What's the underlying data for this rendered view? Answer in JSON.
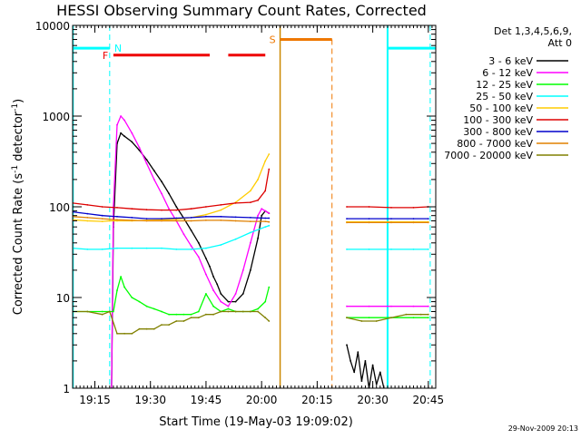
{
  "chart_data": {
    "type": "line",
    "title": "HESSI Observing Summary Count Rates, Corrected",
    "xlabel": "Start Time (19-May-03 19:09:02)",
    "ylabel_main": "Corrected Count Rate (s",
    "ylabel_sup1": "-1",
    "ylabel_mid": " detector",
    "ylabel_sup2": "-1",
    "ylabel_end": ")",
    "footer_date": "29-Nov-2009 20:13",
    "x_unit": "minutes after 19:09:02 UT",
    "xlim": [
      0,
      98
    ],
    "ylim": [
      1,
      10000
    ],
    "yscale": "log",
    "x_ticks": [
      {
        "x": 6,
        "label": "19:15"
      },
      {
        "x": 21,
        "label": "19:30"
      },
      {
        "x": 36,
        "label": "19:45"
      },
      {
        "x": 51,
        "label": "20:00"
      },
      {
        "x": 66,
        "label": "20:15"
      },
      {
        "x": 81,
        "label": "20:30"
      },
      {
        "x": 96,
        "label": "20:45"
      }
    ],
    "x_minor_step": 1,
    "y_ticks": [
      {
        "y": 1,
        "label": "1"
      },
      {
        "y": 10,
        "label": "10"
      },
      {
        "y": 100,
        "label": "100"
      },
      {
        "y": 1000,
        "label": "1000"
      },
      {
        "y": 10000,
        "label": "10000"
      }
    ],
    "legend": {
      "header_line1": "Det 1,3,4,5,6,9,",
      "header_line2": "Att 0",
      "position": "right"
    },
    "series": [
      {
        "name": "3 - 6 keV",
        "color": "#000000",
        "segments": [
          {
            "x": [
              10.5,
              11,
              12,
              13,
              14,
              16,
              18,
              20,
              22,
              24,
              26,
              28,
              30,
              32,
              34,
              36,
              37,
              38,
              39,
              40,
              42,
              44,
              46,
              48,
              50,
              51,
              52,
              53
            ],
            "y": [
              1,
              60,
              500,
              650,
              600,
              520,
              420,
              330,
              250,
              190,
              140,
              100,
              75,
              55,
              40,
              27,
              22,
              17,
              14,
              11,
              9,
              9,
              11,
              20,
              45,
              80,
              90,
              85
            ]
          },
          {
            "x": [
              74,
              75,
              76,
              77,
              78,
              79,
              80,
              81,
              82,
              83,
              84
            ],
            "y": [
              3,
              2,
              1.5,
              2.5,
              1.2,
              2,
              1,
              1.8,
              1.1,
              1.5,
              1
            ]
          }
        ]
      },
      {
        "name": "6 - 12 keV",
        "color": "#ff00ff",
        "segments": [
          {
            "x": [
              10.5,
              11,
              12,
              13,
              14,
              16,
              18,
              20,
              22,
              24,
              26,
              28,
              30,
              32,
              34,
              36,
              38,
              40,
              42,
              44,
              46,
              48,
              50,
              51,
              52,
              53
            ],
            "y": [
              1,
              100,
              800,
              1000,
              900,
              650,
              450,
              300,
              200,
              140,
              95,
              70,
              50,
              37,
              28,
              18,
              12,
              9,
              8,
              11,
              20,
              40,
              80,
              95,
              90,
              85
            ]
          },
          {
            "x": [
              74,
              80,
              86,
              92,
              96
            ],
            "y": [
              8,
              8,
              8,
              8,
              8
            ]
          }
        ]
      },
      {
        "name": "12 - 25 keV",
        "color": "#00ff00",
        "segments": [
          {
            "x": [
              0,
              4,
              8,
              10,
              11,
              12,
              13,
              14,
              16,
              18,
              20,
              22,
              24,
              26,
              28,
              30,
              32,
              34,
              36,
              38,
              40,
              42,
              44,
              46,
              48,
              50,
              52,
              53
            ],
            "y": [
              7,
              7,
              7,
              7,
              7,
              12,
              17,
              13,
              10,
              9,
              8,
              7.5,
              7,
              6.5,
              6.5,
              6.5,
              6.5,
              7,
              11,
              8,
              7,
              7.5,
              7,
              7,
              7,
              7.5,
              9,
              13
            ]
          },
          {
            "x": [
              74,
              80,
              86,
              92,
              96
            ],
            "y": [
              6,
              6,
              6,
              6,
              6
            ]
          }
        ]
      },
      {
        "name": "25 - 50 keV",
        "color": "#00ffff",
        "segments": [
          {
            "x": [
              0,
              4,
              8,
              12,
              16,
              20,
              24,
              28,
              32,
              36,
              40,
              44,
              48,
              52,
              53
            ],
            "y": [
              35,
              34,
              34,
              35,
              35,
              35,
              35,
              34,
              34,
              35,
              38,
              44,
              52,
              60,
              62
            ]
          },
          {
            "x": [
              74,
              80,
              86,
              92,
              96
            ],
            "y": [
              34,
              34,
              34,
              34,
              34
            ]
          }
        ]
      },
      {
        "name": "50 - 100 keV",
        "color": "#ffcc00",
        "segments": [
          {
            "x": [
              0,
              4,
              8,
              10,
              12,
              16,
              20,
              24,
              28,
              32,
              36,
              40,
              44,
              48,
              50,
              52,
              53
            ],
            "y": [
              72,
              70,
              69,
              70,
              70,
              70,
              71,
              72,
              73,
              76,
              82,
              92,
              112,
              150,
              200,
              320,
              380
            ]
          },
          {
            "x": [
              74,
              80,
              86,
              92,
              96
            ],
            "y": [
              68,
              68,
              68,
              68,
              68
            ]
          }
        ]
      },
      {
        "name": "100 - 300 keV",
        "color": "#dd0000",
        "segments": [
          {
            "x": [
              0,
              4,
              8,
              12,
              16,
              20,
              24,
              28,
              32,
              36,
              40,
              44,
              48,
              50,
              52,
              53
            ],
            "y": [
              110,
              105,
              100,
              98,
              95,
              93,
              92,
              92,
              95,
              100,
              105,
              110,
              112,
              118,
              150,
              260
            ]
          },
          {
            "x": [
              74,
              80,
              86,
              92,
              96
            ],
            "y": [
              100,
              100,
              98,
              98,
              100
            ]
          }
        ]
      },
      {
        "name": "300 - 800 keV",
        "color": "#0000cc",
        "segments": [
          {
            "x": [
              0,
              4,
              8,
              12,
              16,
              20,
              24,
              28,
              32,
              36,
              40,
              44,
              48,
              52,
              53
            ],
            "y": [
              88,
              84,
              80,
              78,
              76,
              74,
              74,
              75,
              76,
              78,
              78,
              77,
              76,
              75,
              75
            ]
          },
          {
            "x": [
              74,
              80,
              86,
              92,
              96
            ],
            "y": [
              74,
              74,
              74,
              74,
              74
            ]
          }
        ]
      },
      {
        "name": "800 - 7000 keV",
        "color": "#e08000",
        "segments": [
          {
            "x": [
              0,
              4,
              8,
              12,
              16,
              20,
              24,
              28,
              32,
              36,
              40,
              44,
              48,
              52,
              53
            ],
            "y": [
              78,
              76,
              74,
              72,
              71,
              70,
              70,
              70,
              70,
              71,
              71,
              70,
              69,
              69,
              68
            ]
          },
          {
            "x": [
              74,
              80,
              86,
              92,
              96
            ],
            "y": [
              67,
              67,
              67,
              67,
              67
            ]
          }
        ]
      },
      {
        "name": "7000 - 20000 keV",
        "color": "#808000",
        "segments": [
          {
            "x": [
              0,
              4,
              8,
              10,
              12,
              14,
              16,
              18,
              20,
              22,
              24,
              26,
              28,
              30,
              32,
              34,
              36,
              38,
              40,
              42,
              44,
              46,
              48,
              50,
              52,
              53
            ],
            "y": [
              7,
              7,
              6.5,
              7,
              4,
              4,
              4,
              4.5,
              4.5,
              4.5,
              5,
              5,
              5.5,
              5.5,
              6,
              6,
              6.5,
              6.5,
              7,
              7,
              7,
              7,
              7,
              7,
              6,
              5.5
            ]
          },
          {
            "x": [
              74,
              78,
              82,
              86,
              90,
              94,
              96
            ],
            "y": [
              6,
              5.5,
              5.5,
              6,
              6.5,
              6.5,
              6.5
            ]
          }
        ]
      }
    ],
    "annotations": {
      "night": [
        {
          "x_start": 0,
          "x_end": 10,
          "label": "N",
          "color": "#00ffff",
          "level": 5600,
          "boundary_x": 10
        },
        {
          "x_start": 85,
          "x_end": 98,
          "label": "",
          "color": "#00ffff",
          "level": 5600,
          "boundary_x": 85,
          "boundary_end_x": 96.5
        }
      ],
      "flare": {
        "label": "F",
        "color": "#ee0000",
        "level": 4700,
        "intervals": [
          [
            11,
            37
          ],
          [
            42,
            52
          ]
        ]
      },
      "saa": {
        "label": "S",
        "color": "#ee7700",
        "level": 7000,
        "x_start": 56,
        "x_end": 70,
        "boundary_x": 70
      },
      "gap_solid_line": {
        "x": 56,
        "color": "#cc8800"
      },
      "data_start_line": {
        "x": 0,
        "color": "#00ffff"
      }
    }
  }
}
